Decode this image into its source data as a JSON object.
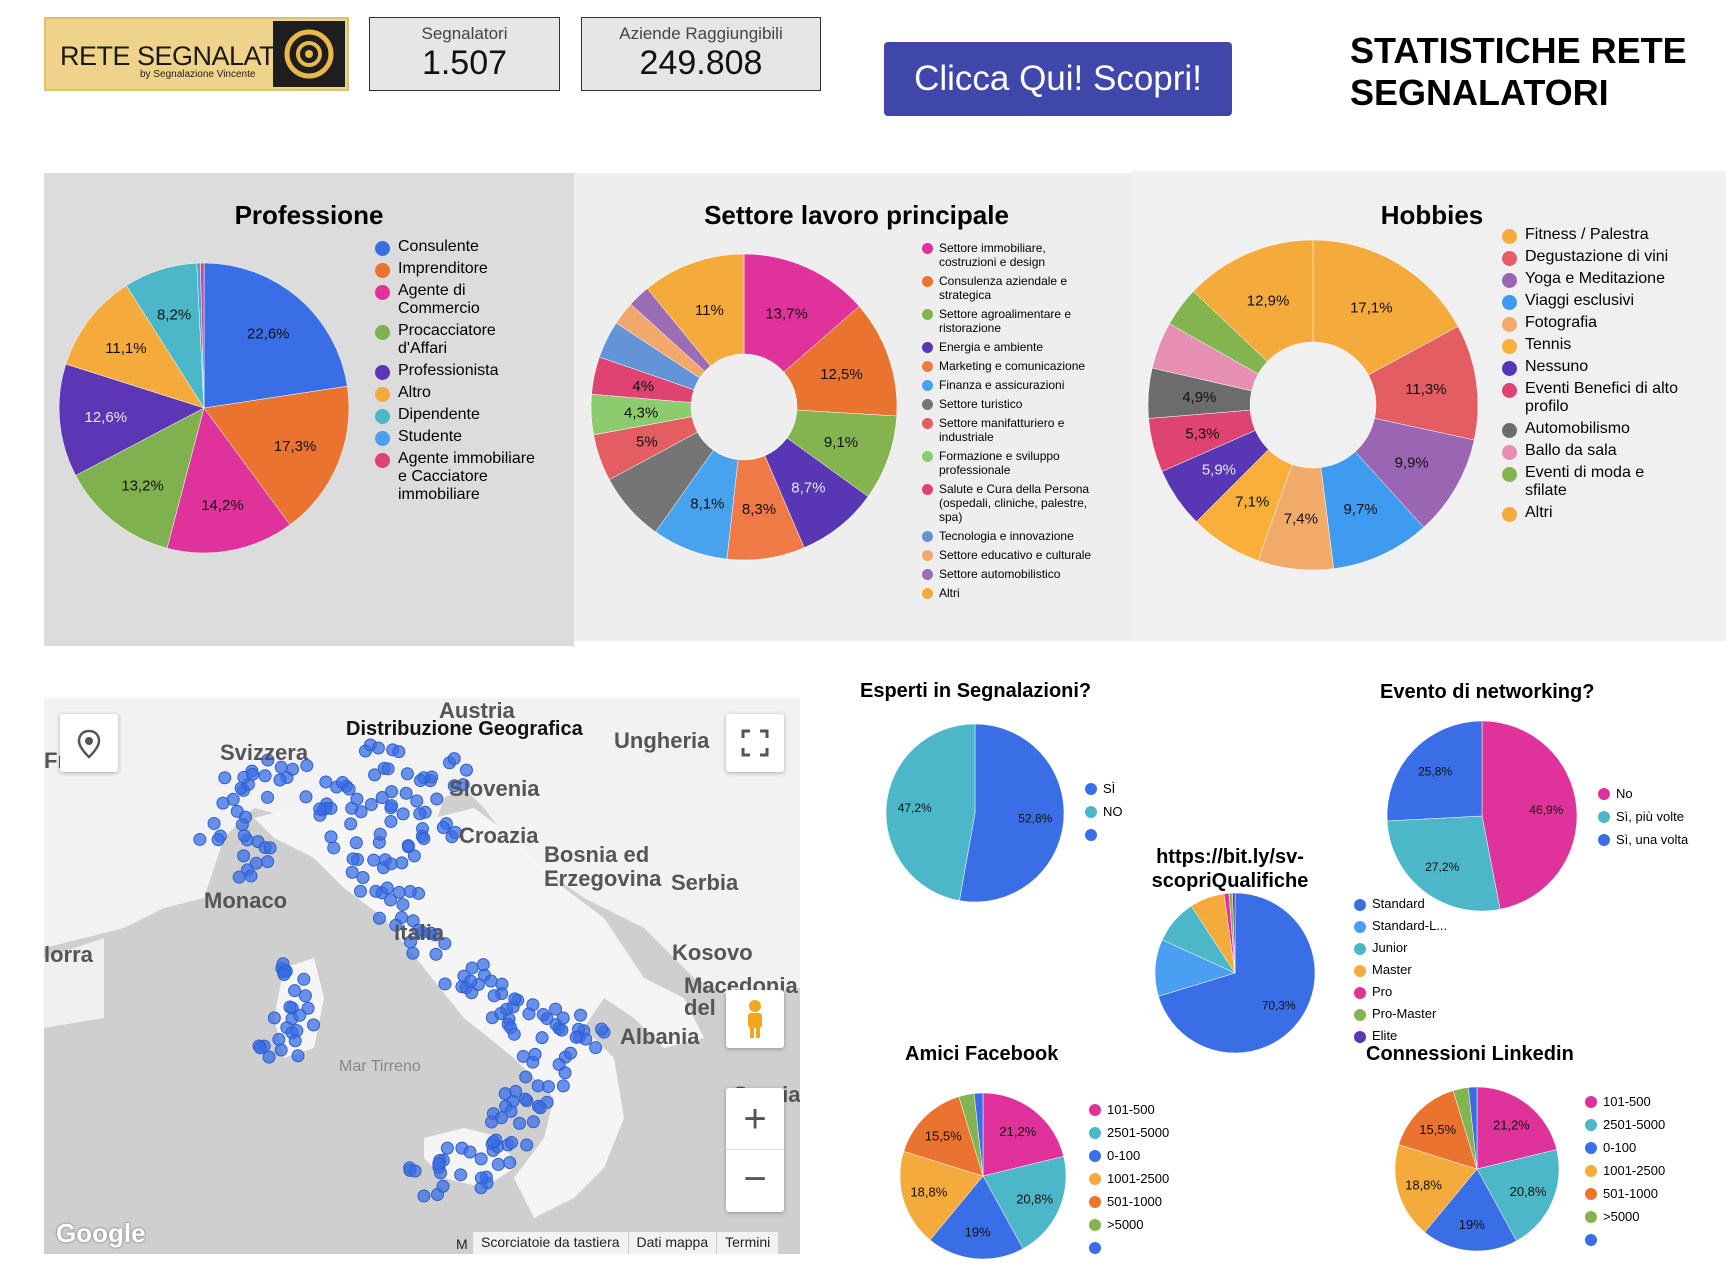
{
  "header": {
    "logo_text": "RETE SEGNALATORI",
    "logo_sub": "by Segnalazione Vincente",
    "kpi1_label": "Segnalatori",
    "kpi1_value": "1.507",
    "kpi2_label": "Aziende Raggiungibili",
    "kpi2_value": "249.808",
    "cta_label": "Clicca Qui! Scopri!",
    "page_title": "STATISTICHE RETE SEGNALATORI"
  },
  "link_text": "https://bit.ly/sv-scopriQualifiche",
  "map": {
    "title": "Distribuzione Geografica",
    "labels": [
      "Austria",
      "Svizzera",
      "Ungheria",
      "Slovenia",
      "Croazia",
      "Bosnia ed Erzegovina",
      "Serbia",
      "Monaco",
      "Italia",
      "Kosovo",
      "Macedonia del",
      "Albania",
      "Grecia",
      "Mar Tirreno",
      "lorra",
      "Fr"
    ],
    "footer": [
      "Scorciatoie da tastiera",
      "Dati mappa",
      "Termini"
    ],
    "google": "Google",
    "footer_m": "M",
    "zoom_in": "+",
    "zoom_out": "−"
  },
  "chart_data": [
    {
      "id": "professione",
      "type": "pie",
      "title": "Professione",
      "series": [
        {
          "label": "Consulente",
          "value": 22.6,
          "color": "#3a6ee6",
          "data_label": "22,6%"
        },
        {
          "label": "Imprenditore",
          "value": 17.3,
          "color": "#ea7330",
          "data_label": "17,3%"
        },
        {
          "label": "Agente di Commercio",
          "value": 14.2,
          "color": "#e0329b",
          "data_label": "14,2%"
        },
        {
          "label": "Procacciatore d'Affari",
          "value": 13.2,
          "color": "#7fb24e",
          "data_label": "13,2%"
        },
        {
          "label": "Professionista",
          "value": 12.6,
          "color": "#5c36b4",
          "data_label": "12,6%"
        },
        {
          "label": "Altro",
          "value": 11.1,
          "color": "#f5ab3b",
          "data_label": "11,1%"
        },
        {
          "label": "Dipendente",
          "value": 8.2,
          "color": "#4cb7c8",
          "data_label": "8,2%"
        },
        {
          "label": "Studente",
          "value": 0.4,
          "color": "#4a9ff0",
          "data_label": ""
        },
        {
          "label": "Agente immobiliare e Cacciatore immobiliare",
          "value": 0.4,
          "color": "#de4371",
          "data_label": ""
        }
      ]
    },
    {
      "id": "settore",
      "type": "pie",
      "title": "Settore lavoro principale",
      "series": [
        {
          "label": "Settore immobiliare, costruzioni e design",
          "value": 13.7,
          "color": "#e0329b",
          "data_label": "13,7%"
        },
        {
          "label": "Consulenza aziendale e strategica",
          "value": 12.5,
          "color": "#ea7330",
          "data_label": "12,5%"
        },
        {
          "label": "Settore agroalimentare e ristorazione",
          "value": 9.1,
          "color": "#83b450",
          "data_label": "9,1%"
        },
        {
          "label": "Energia e ambiente",
          "value": 8.7,
          "color": "#5836b4",
          "data_label": "8,7%"
        },
        {
          "label": "Marketing e comunicazione",
          "value": 8.3,
          "color": "#f07a46",
          "data_label": "8,3%"
        },
        {
          "label": "Finanza e assicurazioni",
          "value": 8.1,
          "color": "#48a3ef",
          "data_label": "8,1%"
        },
        {
          "label": "Settore turistico",
          "value": 7.4,
          "color": "#757575",
          "data_label": ""
        },
        {
          "label": "Settore manifatturiero e industriale",
          "value": 5.0,
          "color": "#e35d62",
          "data_label": "5%"
        },
        {
          "label": "Formazione e sviluppo professionale",
          "value": 4.3,
          "color": "#8ccc6e",
          "data_label": "4,3%"
        },
        {
          "label": "Salute e Cura della Persona (ospedali, cliniche, palestre, spa)",
          "value": 4.0,
          "color": "#de4371",
          "data_label": "4%"
        },
        {
          "label": "Tecnologia e innovazione",
          "value": 4.0,
          "color": "#6394d8",
          "data_label": ""
        },
        {
          "label": "Settore educativo e culturale",
          "value": 2.5,
          "color": "#f2a86a",
          "data_label": ""
        },
        {
          "label": "Settore automobilistico",
          "value": 2.4,
          "color": "#9b6db4",
          "data_label": ""
        },
        {
          "label": "Altri",
          "value": 11.0,
          "color": "#f5ab3b",
          "data_label": "11%"
        }
      ]
    },
    {
      "id": "hobbies",
      "type": "pie",
      "title": "Hobbies",
      "series": [
        {
          "label": "Fitness / Palestra",
          "value": 17.1,
          "color": "#f5ab3b",
          "data_label": "17,1%"
        },
        {
          "label": "Degustazione di vini",
          "value": 11.3,
          "color": "#e35d62",
          "data_label": "11,3%"
        },
        {
          "label": "Yoga e Meditazione",
          "value": 9.9,
          "color": "#9a65b2",
          "data_label": "9,9%"
        },
        {
          "label": "Viaggi esclusivi",
          "value": 9.7,
          "color": "#3f9bef",
          "data_label": "9,7%"
        },
        {
          "label": "Fotografia",
          "value": 7.4,
          "color": "#f2aa6a",
          "data_label": "7,4%"
        },
        {
          "label": "Tennis",
          "value": 7.1,
          "color": "#f8b03a",
          "data_label": "7,1%"
        },
        {
          "label": "Nessuno",
          "value": 5.9,
          "color": "#5836b4",
          "data_label": "5,9%"
        },
        {
          "label": "Eventi Benefici di alto profilo",
          "value": 5.3,
          "color": "#de4371",
          "data_label": "5,3%"
        },
        {
          "label": "Automobilismo",
          "value": 4.9,
          "color": "#6c6c6c",
          "data_label": "4,9%"
        },
        {
          "label": "Ballo da sala",
          "value": 4.6,
          "color": "#e78fb3",
          "data_label": ""
        },
        {
          "label": "Eventi di moda e sfilate",
          "value": 3.9,
          "color": "#83b450",
          "data_label": ""
        },
        {
          "label": "Altri",
          "value": 12.9,
          "color": "#f5ab3b",
          "data_label": "12,9%"
        }
      ]
    },
    {
      "id": "esperti",
      "type": "pie",
      "title": "Esperti in Segnalazioni?",
      "series": [
        {
          "label": "SÌ",
          "value": 52.8,
          "color": "#3a6ee6",
          "data_label": "52,8%"
        },
        {
          "label": "NO",
          "value": 47.2,
          "color": "#4cb7c8",
          "data_label": "47,2%"
        },
        {
          "label": "",
          "value": 0,
          "color": "#3a6ee6",
          "data_label": ""
        }
      ]
    },
    {
      "id": "networking",
      "type": "pie",
      "title": "Evento di networking?",
      "series": [
        {
          "label": "No",
          "value": 46.9,
          "color": "#e0329b",
          "data_label": "46,9%"
        },
        {
          "label": "Sì, più volte",
          "value": 27.2,
          "color": "#4cb7c8",
          "data_label": "27,2%"
        },
        {
          "label": "Sì, una volta",
          "value": 25.8,
          "color": "#3a6ee6",
          "data_label": "25,8%"
        }
      ]
    },
    {
      "id": "qualifiche",
      "type": "pie",
      "title": "",
      "series": [
        {
          "label": "Standard",
          "value": 70.3,
          "color": "#3a6ee6",
          "data_label": "70,3%"
        },
        {
          "label": "Standard-L...",
          "value": 11.5,
          "color": "#4a9ff0",
          "data_label": ""
        },
        {
          "label": "Junior",
          "value": 9.0,
          "color": "#4cb7c8",
          "data_label": ""
        },
        {
          "label": "Master",
          "value": 7.0,
          "color": "#f5ab3b",
          "data_label": ""
        },
        {
          "label": "Pro",
          "value": 1.0,
          "color": "#e0329b",
          "data_label": ""
        },
        {
          "label": "Pro-Master",
          "value": 0.7,
          "color": "#83b450",
          "data_label": ""
        },
        {
          "label": "Elite",
          "value": 0.5,
          "color": "#5836b4",
          "data_label": ""
        }
      ]
    },
    {
      "id": "facebook",
      "type": "pie",
      "title": "Amici Facebook",
      "series": [
        {
          "label": "101-500",
          "value": 21.2,
          "color": "#e0329b",
          "data_label": "21,2%"
        },
        {
          "label": "2501-5000",
          "value": 20.8,
          "color": "#4cb7c8",
          "data_label": "20,8%"
        },
        {
          "label": "0-100",
          "value": 19.0,
          "color": "#3a6ee6",
          "data_label": "19%"
        },
        {
          "label": "1001-2500",
          "value": 18.8,
          "color": "#f5ab3b",
          "data_label": "18,8%"
        },
        {
          "label": "501-1000",
          "value": 15.5,
          "color": "#ea7330",
          "data_label": "15,5%"
        },
        {
          "label": ">5000",
          "value": 3.0,
          "color": "#83b450",
          "data_label": ""
        },
        {
          "label": "",
          "value": 1.7,
          "color": "#3a6ee6",
          "data_label": ""
        }
      ]
    },
    {
      "id": "linkedin",
      "type": "pie",
      "title": "Connessioni Linkedin",
      "series": [
        {
          "label": "101-500",
          "value": 21.2,
          "color": "#e0329b",
          "data_label": "21,2%"
        },
        {
          "label": "2501-5000",
          "value": 20.8,
          "color": "#4cb7c8",
          "data_label": "20,8%"
        },
        {
          "label": "0-100",
          "value": 19.0,
          "color": "#3a6ee6",
          "data_label": "19%"
        },
        {
          "label": "1001-2500",
          "value": 18.8,
          "color": "#f5ab3b",
          "data_label": "18,8%"
        },
        {
          "label": "501-1000",
          "value": 15.5,
          "color": "#ea7330",
          "data_label": "15,5%"
        },
        {
          "label": ">5000",
          "value": 3.0,
          "color": "#83b450",
          "data_label": ""
        },
        {
          "label": "",
          "value": 1.7,
          "color": "#3a6ee6",
          "data_label": ""
        }
      ]
    }
  ]
}
